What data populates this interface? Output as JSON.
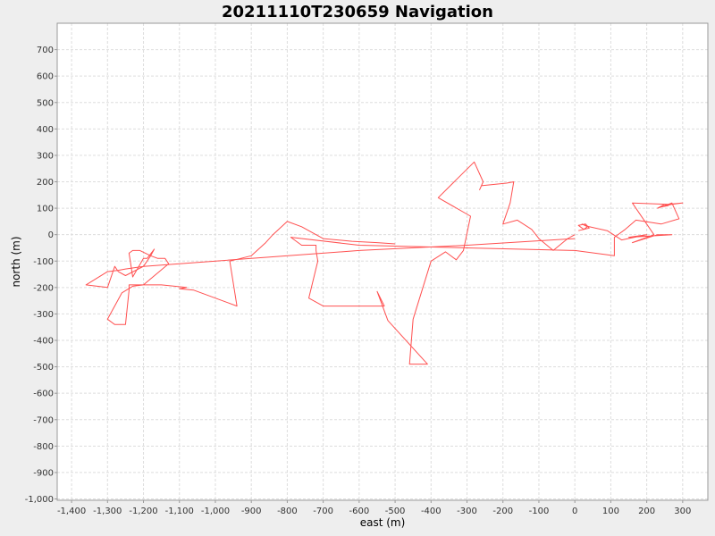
{
  "chart_data": {
    "type": "line",
    "title": "20211110T230659 Navigation",
    "xlabel": "east (m)",
    "ylabel": "north (m)",
    "xlim": [
      -1440,
      370
    ],
    "ylim": [
      -1005,
      800
    ],
    "grid": true,
    "x_ticks": [
      -1400,
      -1300,
      -1200,
      -1100,
      -1000,
      -900,
      -800,
      -700,
      -600,
      -500,
      -400,
      -300,
      -200,
      -100,
      0,
      100,
      200,
      300
    ],
    "x_tick_labels": [
      "-1,400",
      "-1,300",
      "-1,200",
      "-1,100",
      "-1,000",
      "-900",
      "-800",
      "-700",
      "-600",
      "-500",
      "-400",
      "-300",
      "-200",
      "-100",
      "0",
      "100",
      "200",
      "300"
    ],
    "y_ticks": [
      700,
      600,
      500,
      400,
      300,
      200,
      100,
      0,
      -100,
      -200,
      -300,
      -400,
      -500,
      -600,
      -700,
      -800,
      -900,
      -1000
    ],
    "y_tick_labels": [
      "700",
      "600",
      "500",
      "400",
      "300",
      "200",
      "100",
      "0",
      "-100",
      "-200",
      "-300",
      "-400",
      "-500",
      "-600",
      "-700",
      "-800",
      "-900",
      "-1,000"
    ],
    "series": [
      {
        "color": "#ff5050",
        "x": [
          0,
          -20,
          -60,
          -100,
          -120,
          -160,
          -200,
          -180,
          -170,
          -190,
          -260,
          -265,
          -255,
          -280,
          -380,
          -290,
          -310,
          -330,
          -360,
          -400,
          -450,
          -460,
          -410,
          -520,
          -550,
          -530,
          -700,
          -740,
          -715,
          -720,
          -720,
          -720,
          -760,
          -790,
          -600,
          -300,
          0,
          110,
          110,
          140,
          170,
          240,
          290,
          270,
          230,
          250,
          260,
          240,
          270,
          300,
          260,
          160,
          220,
          160,
          230,
          270,
          150,
          200,
          130,
          90,
          40,
          20,
          35,
          25,
          35,
          25,
          10,
          30,
          40,
          10
        ],
        "y": [
          0,
          -15,
          -60,
          -15,
          20,
          55,
          40,
          120,
          200,
          195,
          185,
          170,
          200,
          275,
          140,
          70,
          -60,
          -95,
          -65,
          -100,
          -320,
          -490,
          -490,
          -325,
          -215,
          -270,
          -270,
          -240,
          -100,
          -60,
          -40,
          -40,
          -40,
          -10,
          -40,
          -50,
          -60,
          -80,
          -10,
          20,
          55,
          40,
          60,
          120,
          100,
          115,
          110,
          105,
          115,
          120,
          115,
          120,
          0,
          -30,
          0,
          0,
          -10,
          0,
          -20,
          15,
          30,
          40,
          30,
          20,
          30,
          20,
          35,
          40,
          25,
          15
        ]
      },
      {
        "color": "#ff5050",
        "x": [
          0,
          -300,
          -600,
          -900,
          -1100,
          -1200,
          -1250,
          -1270,
          -1300,
          -1360,
          -1300,
          -1280,
          -1270,
          -1250,
          -1200,
          -1180,
          -1170,
          -1190,
          -1200,
          -1230,
          -1240,
          -1230,
          -1210,
          -1180,
          -1160,
          -1140,
          -1130,
          -1200,
          -1240,
          -1240,
          -1250,
          -1280,
          -1300,
          -1260,
          -1230,
          -1200,
          -1150,
          -1080,
          -1100,
          -1060,
          -1050,
          -940,
          -960,
          -900,
          -860,
          -840,
          -800,
          -760,
          -720,
          -700,
          -620,
          -550,
          -500
        ],
        "y": [
          -15,
          -40,
          -60,
          -90,
          -110,
          -120,
          -130,
          -135,
          -140,
          -190,
          -200,
          -120,
          -140,
          -155,
          -120,
          -80,
          -55,
          -90,
          -90,
          -160,
          -70,
          -60,
          -60,
          -80,
          -90,
          -90,
          -110,
          -190,
          -190,
          -210,
          -340,
          -340,
          -320,
          -220,
          -195,
          -190,
          -190,
          -200,
          -205,
          -210,
          -215,
          -270,
          -100,
          -80,
          -30,
          0,
          50,
          30,
          0,
          -15,
          -25,
          -30,
          -35
        ]
      }
    ]
  }
}
